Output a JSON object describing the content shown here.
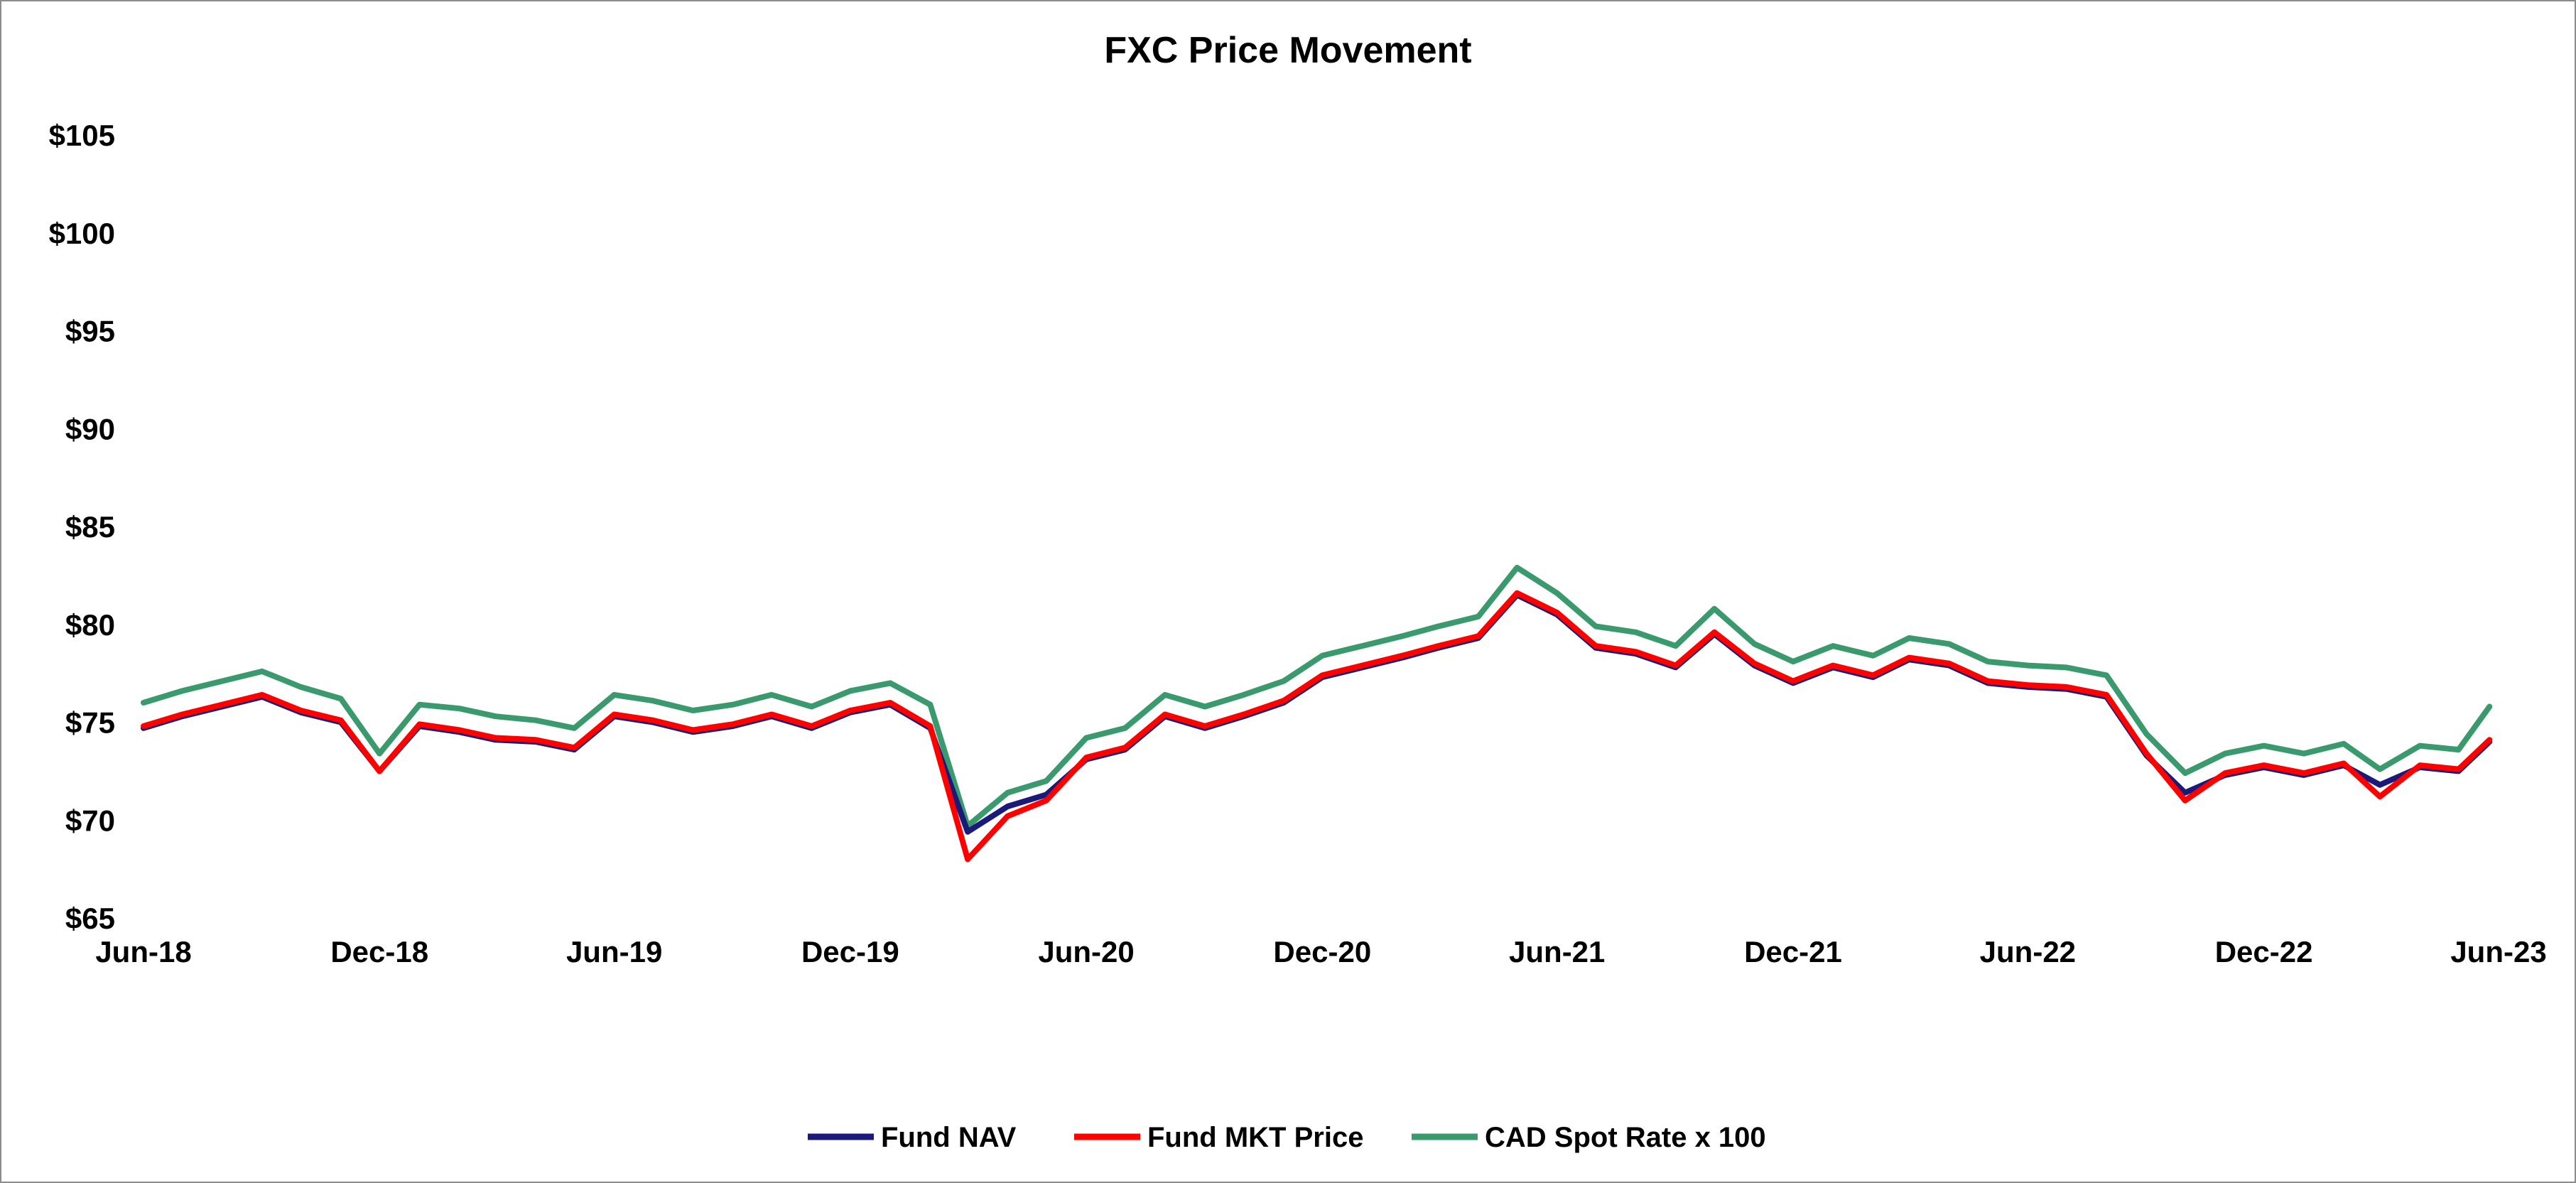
{
  "chart_data": {
    "type": "line",
    "title": "FXC Price Movement",
    "xlabel": "",
    "ylabel": "",
    "ylim": [
      65,
      105
    ],
    "yticks": [
      65,
      70,
      75,
      80,
      85,
      90,
      95,
      100,
      105
    ],
    "ytick_labels": [
      "$65",
      "$70",
      "$75",
      "$80",
      "$85",
      "$90",
      "$95",
      "$100",
      "$105"
    ],
    "xlim": [
      "2018-06-01",
      "2023-06-01"
    ],
    "xticks": [
      "2018-06-01",
      "2018-12-01",
      "2019-06-01",
      "2019-12-01",
      "2020-06-01",
      "2020-12-01",
      "2021-06-01",
      "2021-12-01",
      "2022-06-01",
      "2022-12-01",
      "2023-06-01"
    ],
    "xtick_labels": [
      "Jun-18",
      "Dec-18",
      "Jun-19",
      "Dec-19",
      "Jun-20",
      "Dec-20",
      "Jun-21",
      "Dec-21",
      "Jun-22",
      "Dec-22",
      "Jun-23"
    ],
    "grid": false,
    "legend_position": "bottom",
    "series": [
      {
        "name": "Fund NAV",
        "color": "#1a1a7a",
        "x": [
          "2018-06-01",
          "2018-07-01",
          "2018-08-01",
          "2018-09-01",
          "2018-10-01",
          "2018-11-01",
          "2018-12-01",
          "2019-01-01",
          "2019-02-01",
          "2019-03-01",
          "2019-04-01",
          "2019-05-01",
          "2019-06-01",
          "2019-07-01",
          "2019-08-01",
          "2019-09-01",
          "2019-10-01",
          "2019-11-01",
          "2019-12-01",
          "2020-01-01",
          "2020-02-01",
          "2020-03-01",
          "2020-04-01",
          "2020-05-01",
          "2020-06-01",
          "2020-07-01",
          "2020-08-01",
          "2020-09-01",
          "2020-10-01",
          "2020-11-01",
          "2020-12-01",
          "2021-01-01",
          "2021-02-01",
          "2021-03-01",
          "2021-04-01",
          "2021-05-01",
          "2021-06-01",
          "2021-07-01",
          "2021-08-01",
          "2021-09-01",
          "2021-10-01",
          "2021-11-01",
          "2021-12-01",
          "2022-01-01",
          "2022-02-01",
          "2022-03-01",
          "2022-04-01",
          "2022-05-01",
          "2022-06-01",
          "2022-07-01",
          "2022-08-01",
          "2022-09-01",
          "2022-10-01",
          "2022-11-01",
          "2022-12-01",
          "2023-01-01",
          "2023-02-01",
          "2023-03-01",
          "2023-04-01",
          "2023-05-01",
          "2023-05-25"
        ],
        "values": [
          74.7,
          75.3,
          75.8,
          76.3,
          75.5,
          75.0,
          72.5,
          74.8,
          74.5,
          74.1,
          74.0,
          73.6,
          75.3,
          75.0,
          74.5,
          74.8,
          75.3,
          74.7,
          75.5,
          75.9,
          74.7,
          69.4,
          70.7,
          71.3,
          73.1,
          73.6,
          75.3,
          74.7,
          75.3,
          76.0,
          77.3,
          77.8,
          78.3,
          78.8,
          79.3,
          81.5,
          80.5,
          78.8,
          78.5,
          77.8,
          79.5,
          77.9,
          77.0,
          77.8,
          77.3,
          78.2,
          77.9,
          77.0,
          76.8,
          76.7,
          76.3,
          73.3,
          71.4,
          72.3,
          72.7,
          72.3,
          72.8,
          71.8,
          72.7,
          72.5,
          74.0
        ]
      },
      {
        "name": "Fund MKT Price",
        "color": "#ff0000",
        "x": [
          "2018-06-01",
          "2018-07-01",
          "2018-08-01",
          "2018-09-01",
          "2018-10-01",
          "2018-11-01",
          "2018-12-01",
          "2019-01-01",
          "2019-02-01",
          "2019-03-01",
          "2019-04-01",
          "2019-05-01",
          "2019-06-01",
          "2019-07-01",
          "2019-08-01",
          "2019-09-01",
          "2019-10-01",
          "2019-11-01",
          "2019-12-01",
          "2020-01-01",
          "2020-02-01",
          "2020-03-01",
          "2020-04-01",
          "2020-05-01",
          "2020-06-01",
          "2020-07-01",
          "2020-08-01",
          "2020-09-01",
          "2020-10-01",
          "2020-11-01",
          "2020-12-01",
          "2021-01-01",
          "2021-02-01",
          "2021-03-01",
          "2021-04-01",
          "2021-05-01",
          "2021-06-01",
          "2021-07-01",
          "2021-08-01",
          "2021-09-01",
          "2021-10-01",
          "2021-11-01",
          "2021-12-01",
          "2022-01-01",
          "2022-02-01",
          "2022-03-01",
          "2022-04-01",
          "2022-05-01",
          "2022-06-01",
          "2022-07-01",
          "2022-08-01",
          "2022-09-01",
          "2022-10-01",
          "2022-11-01",
          "2022-12-01",
          "2023-01-01",
          "2023-02-01",
          "2023-03-01",
          "2023-04-01",
          "2023-05-01",
          "2023-05-25"
        ],
        "values": [
          74.8,
          75.4,
          75.9,
          76.4,
          75.6,
          75.1,
          72.5,
          74.9,
          74.6,
          74.2,
          74.1,
          73.7,
          75.4,
          75.1,
          74.6,
          74.9,
          75.4,
          74.8,
          75.6,
          76.0,
          74.8,
          68.0,
          70.2,
          71.0,
          73.2,
          73.7,
          75.4,
          74.8,
          75.4,
          76.1,
          77.4,
          77.9,
          78.4,
          78.9,
          79.4,
          81.6,
          80.6,
          78.9,
          78.6,
          77.9,
          79.6,
          78.0,
          77.1,
          77.9,
          77.4,
          78.3,
          78.0,
          77.1,
          76.9,
          76.8,
          76.4,
          73.4,
          71.0,
          72.4,
          72.8,
          72.4,
          72.9,
          71.2,
          72.8,
          72.6,
          74.1
        ]
      },
      {
        "name": "CAD Spot Rate x 100",
        "color": "#3a9a6e",
        "x": [
          "2018-06-01",
          "2018-07-01",
          "2018-08-01",
          "2018-09-01",
          "2018-10-01",
          "2018-11-01",
          "2018-12-01",
          "2019-01-01",
          "2019-02-01",
          "2019-03-01",
          "2019-04-01",
          "2019-05-01",
          "2019-06-01",
          "2019-07-01",
          "2019-08-01",
          "2019-09-01",
          "2019-10-01",
          "2019-11-01",
          "2019-12-01",
          "2020-01-01",
          "2020-02-01",
          "2020-03-01",
          "2020-04-01",
          "2020-05-01",
          "2020-06-01",
          "2020-07-01",
          "2020-08-01",
          "2020-09-01",
          "2020-10-01",
          "2020-11-01",
          "2020-12-01",
          "2021-01-01",
          "2021-02-01",
          "2021-03-01",
          "2021-04-01",
          "2021-05-01",
          "2021-06-01",
          "2021-07-01",
          "2021-08-01",
          "2021-09-01",
          "2021-10-01",
          "2021-11-01",
          "2021-12-01",
          "2022-01-01",
          "2022-02-01",
          "2022-03-01",
          "2022-04-01",
          "2022-05-01",
          "2022-06-01",
          "2022-07-01",
          "2022-08-01",
          "2022-09-01",
          "2022-10-01",
          "2022-11-01",
          "2022-12-01",
          "2023-01-01",
          "2023-02-01",
          "2023-03-01",
          "2023-04-01",
          "2023-05-01",
          "2023-05-25"
        ],
        "values": [
          76.0,
          76.6,
          77.1,
          77.6,
          76.8,
          76.2,
          73.4,
          75.9,
          75.7,
          75.3,
          75.1,
          74.7,
          76.4,
          76.1,
          75.6,
          75.9,
          76.4,
          75.8,
          76.6,
          77.0,
          75.9,
          69.7,
          71.4,
          72.0,
          74.2,
          74.7,
          76.4,
          75.8,
          76.4,
          77.1,
          78.4,
          78.9,
          79.4,
          79.9,
          80.4,
          82.9,
          81.6,
          79.9,
          79.6,
          78.9,
          80.8,
          79.0,
          78.1,
          78.9,
          78.4,
          79.3,
          79.0,
          78.1,
          77.9,
          77.8,
          77.4,
          74.4,
          72.4,
          73.4,
          73.8,
          73.4,
          73.9,
          72.6,
          73.8,
          73.6,
          75.8
        ]
      }
    ]
  }
}
